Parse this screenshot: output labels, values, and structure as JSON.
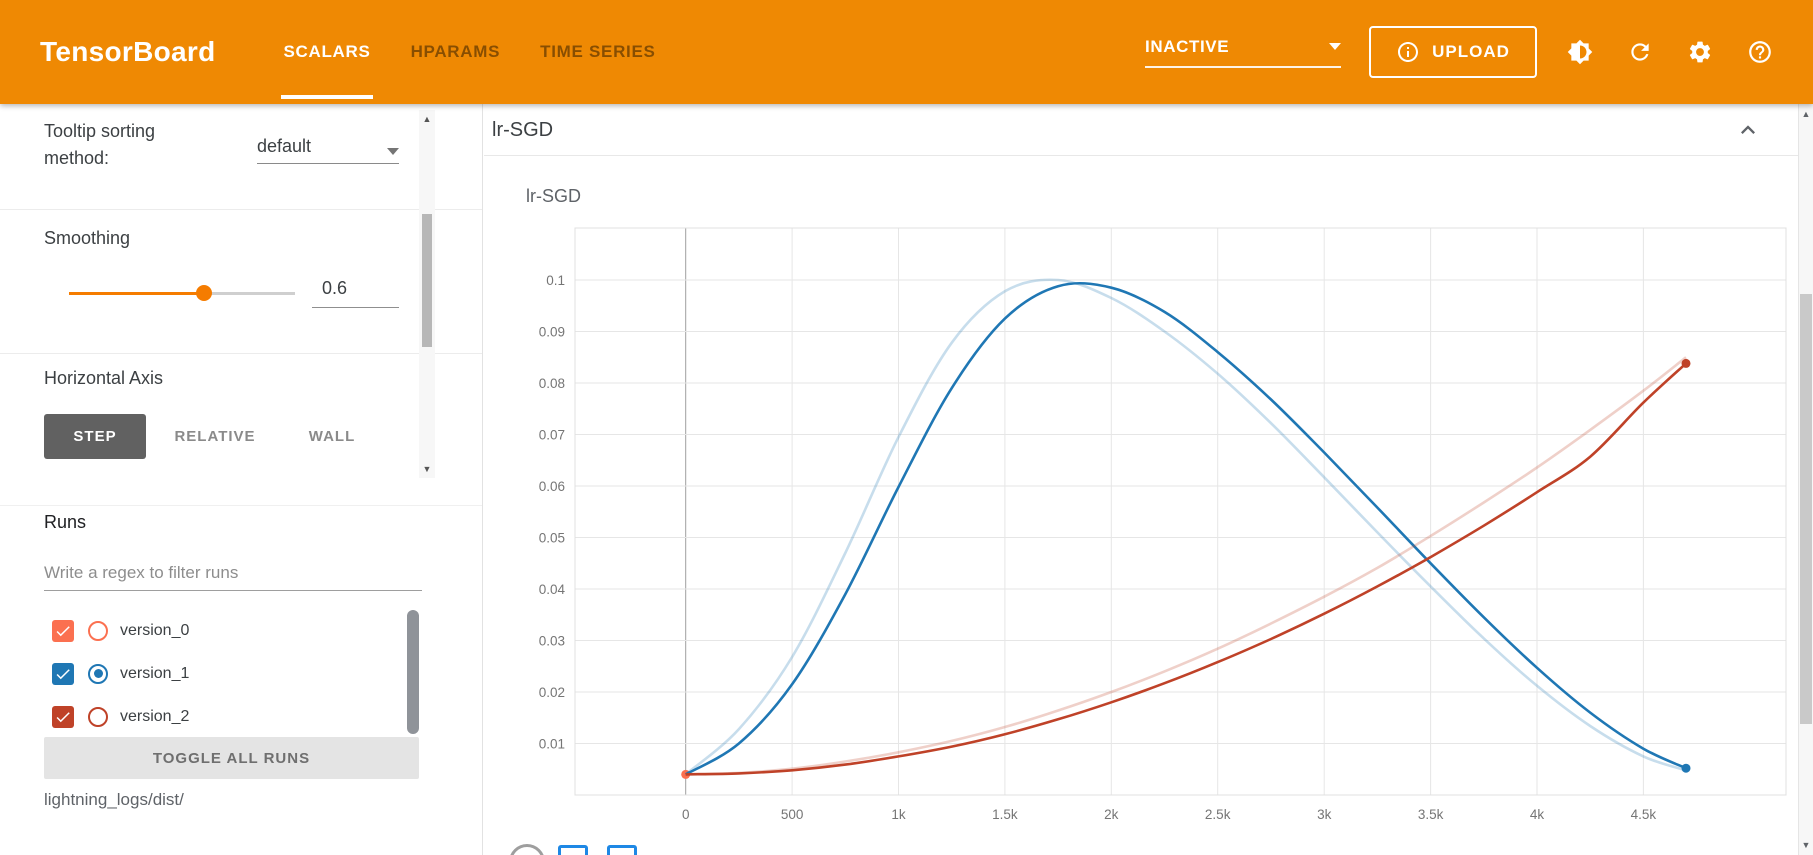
{
  "colors": {
    "header_bg": "#ef8903",
    "accent": "#f57c00",
    "step_button_bg": "#616161",
    "grid_line": "#e6e6e6",
    "zero_line": "#9e9e9e"
  },
  "icons": {
    "scroll_up": "▲",
    "scroll_down": "▼"
  },
  "header": {
    "logo": "TensorBoard",
    "tabs": [
      {
        "label": "SCALARS",
        "active": true
      },
      {
        "label": "HPARAMS",
        "active": false
      },
      {
        "label": "TIME SERIES",
        "active": false
      }
    ],
    "status": "INACTIVE",
    "upload": "UPLOAD"
  },
  "sidebar": {
    "tooltip_label": "Tooltip sorting method:",
    "tooltip_value": "default",
    "smoothing_label": "Smoothing",
    "smoothing_value": "0.6",
    "haxis_label": "Horizontal Axis",
    "haxis_options": [
      "STEP",
      "RELATIVE",
      "WALL"
    ],
    "haxis_selected": "STEP",
    "runs_label": "Runs",
    "filter_placeholder": "Write a regex to filter runs",
    "runs": [
      {
        "name": "version_0",
        "color": "#fb7050",
        "checked": true,
        "selected": false
      },
      {
        "name": "version_1",
        "color": "#1f77b4",
        "checked": true,
        "selected": true
      },
      {
        "name": "version_2",
        "color": "#bf4228",
        "checked": true,
        "selected": false
      }
    ],
    "toggle_all": "TOGGLE ALL RUNS",
    "logdir": "lightning_logs/dist/"
  },
  "main": {
    "group_title": "lr-SGD",
    "chart_title": "lr-SGD"
  },
  "chart_data": {
    "type": "line",
    "title": "lr-SGD",
    "xlabel": "",
    "ylabel": "",
    "xlim": [
      -520,
      5170
    ],
    "ylim": [
      0,
      0.1101
    ],
    "x_tick_values": [
      0,
      500,
      1000,
      1500,
      2000,
      2500,
      3000,
      3500,
      4000,
      4500
    ],
    "x_tick_labels": [
      "0",
      "500",
      "1k",
      "1.5k",
      "2k",
      "2.5k",
      "3k",
      "3.5k",
      "4k",
      "4.5k"
    ],
    "y_tick_values": [
      0.01,
      0.02,
      0.03,
      0.04,
      0.05,
      0.06,
      0.07,
      0.08,
      0.09,
      0.1
    ],
    "y_tick_labels": [
      "0.01",
      "0.02",
      "0.03",
      "0.04",
      "0.05",
      "0.06",
      "0.07",
      "0.08",
      "0.09",
      "0.1"
    ],
    "legend_position": "none",
    "grid": true,
    "series": [
      {
        "name": "version_0",
        "color": "#fb7050",
        "original": [
          [
            0,
            0.004
          ]
        ],
        "smoothed": [
          [
            0,
            0.004
          ]
        ]
      },
      {
        "name": "version_1",
        "color": "#1f77b4",
        "original": [
          [
            0,
            0.004
          ],
          [
            250,
            0.0128
          ],
          [
            500,
            0.0268
          ],
          [
            750,
            0.047
          ],
          [
            1000,
            0.0695
          ],
          [
            1250,
            0.0878
          ],
          [
            1500,
            0.0978
          ],
          [
            1750,
            0.1
          ],
          [
            2000,
            0.0965
          ],
          [
            2250,
            0.09
          ],
          [
            2500,
            0.0818
          ],
          [
            2750,
            0.0722
          ],
          [
            3000,
            0.0617
          ],
          [
            3250,
            0.051
          ],
          [
            3500,
            0.0405
          ],
          [
            3750,
            0.0304
          ],
          [
            4000,
            0.0212
          ],
          [
            4250,
            0.0134
          ],
          [
            4500,
            0.0075
          ],
          [
            4700,
            0.0048
          ]
        ],
        "smoothed": [
          [
            0,
            0.004
          ],
          [
            250,
            0.01
          ],
          [
            500,
            0.0215
          ],
          [
            750,
            0.039
          ],
          [
            1000,
            0.0598
          ],
          [
            1250,
            0.079
          ],
          [
            1500,
            0.0925
          ],
          [
            1750,
            0.0988
          ],
          [
            2000,
            0.0985
          ],
          [
            2250,
            0.0938
          ],
          [
            2500,
            0.086
          ],
          [
            2750,
            0.0768
          ],
          [
            3000,
            0.0665
          ],
          [
            3250,
            0.0558
          ],
          [
            3500,
            0.045
          ],
          [
            3750,
            0.0345
          ],
          [
            4000,
            0.0247
          ],
          [
            4250,
            0.016
          ],
          [
            4500,
            0.009
          ],
          [
            4700,
            0.0052
          ]
        ]
      },
      {
        "name": "version_2",
        "color": "#bf4228",
        "original": [
          [
            0,
            0.004
          ],
          [
            250,
            0.0043
          ],
          [
            500,
            0.0051
          ],
          [
            750,
            0.0065
          ],
          [
            1000,
            0.0083
          ],
          [
            1250,
            0.0105
          ],
          [
            1500,
            0.0132
          ],
          [
            1750,
            0.0164
          ],
          [
            2000,
            0.02
          ],
          [
            2250,
            0.024
          ],
          [
            2500,
            0.0284
          ],
          [
            2750,
            0.0333
          ],
          [
            3000,
            0.0385
          ],
          [
            3250,
            0.0441
          ],
          [
            3500,
            0.0503
          ],
          [
            3750,
            0.0568
          ],
          [
            4000,
            0.0636
          ],
          [
            4250,
            0.0709
          ],
          [
            4500,
            0.0785
          ],
          [
            4700,
            0.085
          ]
        ],
        "smoothed": [
          [
            0,
            0.004
          ],
          [
            250,
            0.0042
          ],
          [
            500,
            0.0048
          ],
          [
            750,
            0.0059
          ],
          [
            1000,
            0.0075
          ],
          [
            1250,
            0.0094
          ],
          [
            1500,
            0.0118
          ],
          [
            1750,
            0.0147
          ],
          [
            2000,
            0.018
          ],
          [
            2250,
            0.0217
          ],
          [
            2500,
            0.0258
          ],
          [
            2750,
            0.0303
          ],
          [
            3000,
            0.0352
          ],
          [
            3250,
            0.0405
          ],
          [
            3500,
            0.0462
          ],
          [
            3750,
            0.0523
          ],
          [
            4000,
            0.0588
          ],
          [
            4250,
            0.0657
          ],
          [
            4500,
            0.0762
          ],
          [
            4700,
            0.0838
          ]
        ]
      }
    ]
  }
}
